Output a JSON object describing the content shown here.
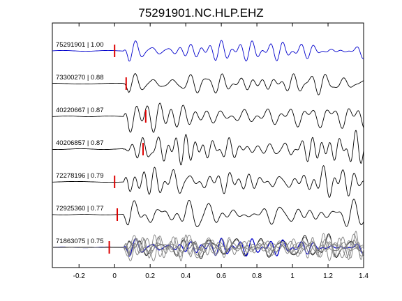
{
  "chart_data": {
    "type": "line",
    "title": "75291901.NC.HLP.EHZ",
    "xlabel": "",
    "ylabel": "",
    "xlim": [
      -0.35,
      1.4
    ],
    "xticks": [
      -0.2,
      0,
      0.2,
      0.4,
      0.6,
      0.8,
      1,
      1.2,
      1.4
    ],
    "xtick_labels": [
      "-0.2",
      "0",
      "0.2",
      "0.4",
      "0.6",
      "0.8",
      "1",
      "1.2",
      "1.4"
    ],
    "colors": {
      "reference": "#0000cc",
      "trace": "#000000",
      "pick": "#dd0000",
      "overlay": "#808080"
    },
    "traces": [
      {
        "label": "75291901 | 1.00",
        "event_id": "75291901",
        "correlation": 1.0,
        "pick_time": 0.0,
        "reference": true
      },
      {
        "label": "73300270 | 0.88",
        "event_id": "73300270",
        "correlation": 0.88,
        "pick_time": 0.065
      },
      {
        "label": "40220667 | 0.87",
        "event_id": "40220667",
        "correlation": 0.87,
        "pick_time": 0.175
      },
      {
        "label": "40206857 | 0.87",
        "event_id": "40206857",
        "correlation": 0.87,
        "pick_time": 0.16
      },
      {
        "label": "72278196 | 0.79",
        "event_id": "72278196",
        "correlation": 0.79,
        "pick_time": 0.0
      },
      {
        "label": "72925360 | 0.77",
        "event_id": "72925360",
        "correlation": 0.77,
        "pick_time": 0.015
      },
      {
        "label": "71863075 | 0.75",
        "event_id": "71863075",
        "correlation": 0.75,
        "pick_time": -0.03
      }
    ],
    "overlay": {
      "description_visible": false
    },
    "grid": false,
    "legend": "none"
  }
}
